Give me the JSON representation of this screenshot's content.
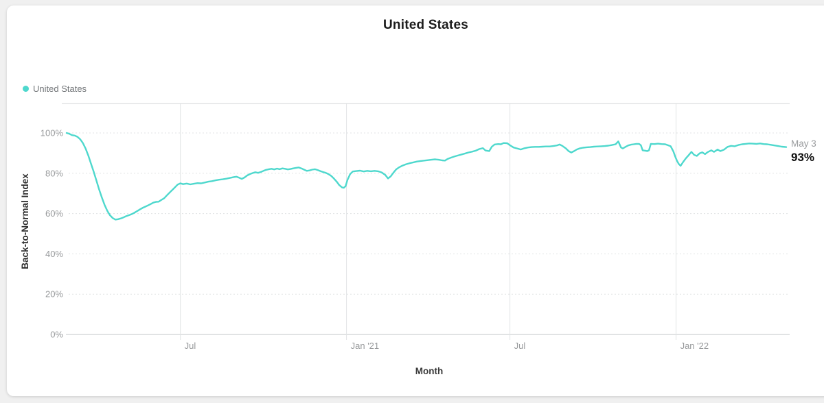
{
  "header": {
    "title": "United States"
  },
  "chart_data": {
    "type": "line",
    "title": "United States",
    "xlabel": "Month",
    "ylabel": "Back-to-Normal Index",
    "legend_position": "top-left",
    "grid": {
      "horizontal": "dashed",
      "vertical": "solid"
    },
    "ylim": [
      0,
      100
    ],
    "yticks": [
      {
        "value": 0,
        "label": "0%"
      },
      {
        "value": 20,
        "label": "20%"
      },
      {
        "value": 40,
        "label": "40%"
      },
      {
        "value": 60,
        "label": "60%"
      },
      {
        "value": 80,
        "label": "80%"
      },
      {
        "value": 100,
        "label": "100%"
      }
    ],
    "xticks": [
      {
        "date": "2020-07-01",
        "label": "Jul"
      },
      {
        "date": "2021-01-01",
        "label": "Jan '21"
      },
      {
        "date": "2021-07-01",
        "label": "Jul"
      },
      {
        "date": "2022-01-01",
        "label": "Jan '22"
      }
    ],
    "x_range": [
      "2020-02-26",
      "2022-05-03"
    ],
    "end_annotation": {
      "date_label": "May 3",
      "value_label": "93%",
      "value": 93
    },
    "colors": {
      "line": "#4ed8cd",
      "gridline": "#e1e3e4",
      "axis_line": "#cfd2d3",
      "tick_text": "#97999b"
    },
    "series": [
      {
        "name": "United States",
        "color": "#4ed8cd",
        "points": [
          [
            "2020-02-26",
            100
          ],
          [
            "2020-02-29",
            99.6
          ],
          [
            "2020-03-03",
            98.9
          ],
          [
            "2020-03-06",
            98.7
          ],
          [
            "2020-03-09",
            98.1
          ],
          [
            "2020-03-12",
            96.9
          ],
          [
            "2020-03-15",
            95
          ],
          [
            "2020-03-18",
            92.3
          ],
          [
            "2020-03-21",
            88.8
          ],
          [
            "2020-03-24",
            84.8
          ],
          [
            "2020-03-27",
            80.8
          ],
          [
            "2020-03-30",
            76.4
          ],
          [
            "2020-04-02",
            72
          ],
          [
            "2020-04-05",
            68
          ],
          [
            "2020-04-08",
            64.4
          ],
          [
            "2020-04-11",
            61.4
          ],
          [
            "2020-04-14",
            59.2
          ],
          [
            "2020-04-17",
            57.8
          ],
          [
            "2020-04-20",
            57
          ],
          [
            "2020-04-23",
            57.2
          ],
          [
            "2020-04-26",
            57.6
          ],
          [
            "2020-04-29",
            58.1
          ],
          [
            "2020-05-02",
            58.7
          ],
          [
            "2020-05-05",
            59.2
          ],
          [
            "2020-05-08",
            59.7
          ],
          [
            "2020-05-11",
            60.4
          ],
          [
            "2020-05-14",
            61.2
          ],
          [
            "2020-05-17",
            62
          ],
          [
            "2020-05-20",
            62.8
          ],
          [
            "2020-05-23",
            63.4
          ],
          [
            "2020-05-26",
            64
          ],
          [
            "2020-05-29",
            64.7
          ],
          [
            "2020-06-01",
            65.4
          ],
          [
            "2020-06-04",
            65.8
          ],
          [
            "2020-06-07",
            65.9
          ],
          [
            "2020-06-10",
            66.8
          ],
          [
            "2020-06-13",
            67.6
          ],
          [
            "2020-06-16",
            69
          ],
          [
            "2020-06-20",
            70.8
          ],
          [
            "2020-06-24",
            72.6
          ],
          [
            "2020-06-28",
            74.4
          ],
          [
            "2020-07-01",
            75
          ],
          [
            "2020-07-04",
            74.6
          ],
          [
            "2020-07-08",
            74.9
          ],
          [
            "2020-07-12",
            74.5
          ],
          [
            "2020-07-16",
            74.8
          ],
          [
            "2020-07-20",
            75.1
          ],
          [
            "2020-07-24",
            75
          ],
          [
            "2020-07-28",
            75.4
          ],
          [
            "2020-08-01",
            75.8
          ],
          [
            "2020-08-05",
            76.1
          ],
          [
            "2020-08-09",
            76.5
          ],
          [
            "2020-08-13",
            76.8
          ],
          [
            "2020-08-17",
            77
          ],
          [
            "2020-08-21",
            77.3
          ],
          [
            "2020-08-25",
            77.7
          ],
          [
            "2020-08-29",
            78.1
          ],
          [
            "2020-09-01",
            78.3
          ],
          [
            "2020-09-04",
            77.8
          ],
          [
            "2020-09-07",
            77.2
          ],
          [
            "2020-09-10",
            77.9
          ],
          [
            "2020-09-13",
            78.9
          ],
          [
            "2020-09-16",
            79.6
          ],
          [
            "2020-09-19",
            80.1
          ],
          [
            "2020-09-22",
            80.5
          ],
          [
            "2020-09-25",
            80.2
          ],
          [
            "2020-09-28",
            80.6
          ],
          [
            "2020-10-01",
            81.2
          ],
          [
            "2020-10-04",
            81.7
          ],
          [
            "2020-10-07",
            82
          ],
          [
            "2020-10-10",
            82.2
          ],
          [
            "2020-10-13",
            81.9
          ],
          [
            "2020-10-16",
            82.3
          ],
          [
            "2020-10-19",
            82
          ],
          [
            "2020-10-22",
            82.4
          ],
          [
            "2020-10-25",
            82.2
          ],
          [
            "2020-10-28",
            81.9
          ],
          [
            "2020-10-31",
            82.1
          ],
          [
            "2020-11-03",
            82.4
          ],
          [
            "2020-11-06",
            82.7
          ],
          [
            "2020-11-09",
            82.9
          ],
          [
            "2020-11-12",
            82.4
          ],
          [
            "2020-11-15",
            81.8
          ],
          [
            "2020-11-18",
            81.2
          ],
          [
            "2020-11-21",
            81.4
          ],
          [
            "2020-11-24",
            81.8
          ],
          [
            "2020-11-27",
            82
          ],
          [
            "2020-11-30",
            81.6
          ],
          [
            "2020-12-03",
            81.1
          ],
          [
            "2020-12-06",
            80.6
          ],
          [
            "2020-12-09",
            80.2
          ],
          [
            "2020-12-12",
            79.6
          ],
          [
            "2020-12-15",
            78.7
          ],
          [
            "2020-12-18",
            77.4
          ],
          [
            "2020-12-21",
            75.9
          ],
          [
            "2020-12-24",
            74.1
          ],
          [
            "2020-12-27",
            73
          ],
          [
            "2020-12-29",
            72.8
          ],
          [
            "2020-12-31",
            73.6
          ],
          [
            "2021-01-02",
            76.6
          ],
          [
            "2021-01-05",
            79.6
          ],
          [
            "2021-01-08",
            80.9
          ],
          [
            "2021-01-12",
            81.1
          ],
          [
            "2021-01-16",
            81.3
          ],
          [
            "2021-01-20",
            80.9
          ],
          [
            "2021-01-24",
            81.2
          ],
          [
            "2021-01-28",
            81
          ],
          [
            "2021-02-01",
            81.2
          ],
          [
            "2021-02-05",
            81
          ],
          [
            "2021-02-09",
            80.4
          ],
          [
            "2021-02-13",
            79.1
          ],
          [
            "2021-02-16",
            77.4
          ],
          [
            "2021-02-19",
            78.5
          ],
          [
            "2021-02-22",
            80.3
          ],
          [
            "2021-02-25",
            81.9
          ],
          [
            "2021-02-28",
            82.9
          ],
          [
            "2021-03-04",
            83.8
          ],
          [
            "2021-03-08",
            84.5
          ],
          [
            "2021-03-12",
            85
          ],
          [
            "2021-03-16",
            85.4
          ],
          [
            "2021-03-20",
            85.8
          ],
          [
            "2021-03-24",
            86.1
          ],
          [
            "2021-03-28",
            86.3
          ],
          [
            "2021-04-01",
            86.5
          ],
          [
            "2021-04-05",
            86.7
          ],
          [
            "2021-04-09",
            86.9
          ],
          [
            "2021-04-13",
            86.7
          ],
          [
            "2021-04-17",
            86.4
          ],
          [
            "2021-04-20",
            86.3
          ],
          [
            "2021-04-23",
            87.1
          ],
          [
            "2021-04-27",
            87.8
          ],
          [
            "2021-05-01",
            88.4
          ],
          [
            "2021-05-05",
            88.9
          ],
          [
            "2021-05-09",
            89.4
          ],
          [
            "2021-05-13",
            89.9
          ],
          [
            "2021-05-16",
            90.3
          ],
          [
            "2021-05-20",
            90.7
          ],
          [
            "2021-05-24",
            91.2
          ],
          [
            "2021-05-28",
            92
          ],
          [
            "2021-06-01",
            92.5
          ],
          [
            "2021-06-04",
            91.3
          ],
          [
            "2021-06-08",
            91
          ],
          [
            "2021-06-11",
            93.2
          ],
          [
            "2021-06-14",
            94.3
          ],
          [
            "2021-06-18",
            94.5
          ],
          [
            "2021-06-21",
            94.4
          ],
          [
            "2021-06-24",
            95
          ],
          [
            "2021-06-28",
            94.9
          ],
          [
            "2021-07-01",
            93.9
          ],
          [
            "2021-07-05",
            92.8
          ],
          [
            "2021-07-09",
            92.3
          ],
          [
            "2021-07-13",
            91.8
          ],
          [
            "2021-07-17",
            92.4
          ],
          [
            "2021-07-21",
            92.8
          ],
          [
            "2021-07-25",
            93
          ],
          [
            "2021-07-29",
            93.1
          ],
          [
            "2021-08-02",
            93.1
          ],
          [
            "2021-08-06",
            93.2
          ],
          [
            "2021-08-10",
            93.3
          ],
          [
            "2021-08-14",
            93.3
          ],
          [
            "2021-08-18",
            93.5
          ],
          [
            "2021-08-22",
            93.8
          ],
          [
            "2021-08-25",
            94.3
          ],
          [
            "2021-08-28",
            93.6
          ],
          [
            "2021-09-01",
            92.3
          ],
          [
            "2021-09-04",
            91
          ],
          [
            "2021-09-07",
            90.3
          ],
          [
            "2021-09-10",
            91
          ],
          [
            "2021-09-13",
            91.8
          ],
          [
            "2021-09-16",
            92.3
          ],
          [
            "2021-09-20",
            92.7
          ],
          [
            "2021-09-24",
            92.9
          ],
          [
            "2021-09-28",
            93
          ],
          [
            "2021-10-02",
            93.2
          ],
          [
            "2021-10-06",
            93.3
          ],
          [
            "2021-10-10",
            93.4
          ],
          [
            "2021-10-14",
            93.5
          ],
          [
            "2021-10-18",
            93.7
          ],
          [
            "2021-10-22",
            94
          ],
          [
            "2021-10-26",
            94.4
          ],
          [
            "2021-10-29",
            95.8
          ],
          [
            "2021-11-01",
            92.8
          ],
          [
            "2021-11-03",
            92.3
          ],
          [
            "2021-11-06",
            93.1
          ],
          [
            "2021-11-09",
            93.8
          ],
          [
            "2021-11-12",
            94.2
          ],
          [
            "2021-11-15",
            94.4
          ],
          [
            "2021-11-18",
            94.6
          ],
          [
            "2021-11-21",
            94.6
          ],
          [
            "2021-11-23",
            93.9
          ],
          [
            "2021-11-25",
            91.4
          ],
          [
            "2021-11-28",
            91.2
          ],
          [
            "2021-11-30",
            91
          ],
          [
            "2021-12-02",
            91.4
          ],
          [
            "2021-12-04",
            94.6
          ],
          [
            "2021-12-08",
            94.5
          ],
          [
            "2021-12-12",
            94.7
          ],
          [
            "2021-12-16",
            94.5
          ],
          [
            "2021-12-20",
            94.4
          ],
          [
            "2021-12-23",
            93.9
          ],
          [
            "2021-12-26",
            93.4
          ],
          [
            "2021-12-29",
            90.9
          ],
          [
            "2021-12-31",
            88.3
          ],
          [
            "2022-01-02",
            86.2
          ],
          [
            "2022-01-04",
            84.6
          ],
          [
            "2022-01-06",
            83.7
          ],
          [
            "2022-01-09",
            85.7
          ],
          [
            "2022-01-12",
            87.5
          ],
          [
            "2022-01-15",
            89
          ],
          [
            "2022-01-18",
            90.6
          ],
          [
            "2022-01-21",
            89.1
          ],
          [
            "2022-01-24",
            88.6
          ],
          [
            "2022-01-27",
            89.9
          ],
          [
            "2022-01-30",
            90.4
          ],
          [
            "2022-02-02",
            89.5
          ],
          [
            "2022-02-05",
            90.5
          ],
          [
            "2022-02-09",
            91.4
          ],
          [
            "2022-02-12",
            90.6
          ],
          [
            "2022-02-16",
            91.8
          ],
          [
            "2022-02-19",
            91
          ],
          [
            "2022-02-23",
            91.7
          ],
          [
            "2022-02-27",
            93.1
          ],
          [
            "2022-03-03",
            93.6
          ],
          [
            "2022-03-07",
            93.4
          ],
          [
            "2022-03-11",
            94
          ],
          [
            "2022-03-15",
            94.4
          ],
          [
            "2022-03-19",
            94.6
          ],
          [
            "2022-03-23",
            94.8
          ],
          [
            "2022-03-27",
            94.7
          ],
          [
            "2022-03-31",
            94.6
          ],
          [
            "2022-04-04",
            94.8
          ],
          [
            "2022-04-08",
            94.5
          ],
          [
            "2022-04-12",
            94.4
          ],
          [
            "2022-04-16",
            94.1
          ],
          [
            "2022-04-20",
            93.8
          ],
          [
            "2022-04-24",
            93.5
          ],
          [
            "2022-04-28",
            93.2
          ],
          [
            "2022-05-03",
            93
          ]
        ]
      }
    ]
  }
}
